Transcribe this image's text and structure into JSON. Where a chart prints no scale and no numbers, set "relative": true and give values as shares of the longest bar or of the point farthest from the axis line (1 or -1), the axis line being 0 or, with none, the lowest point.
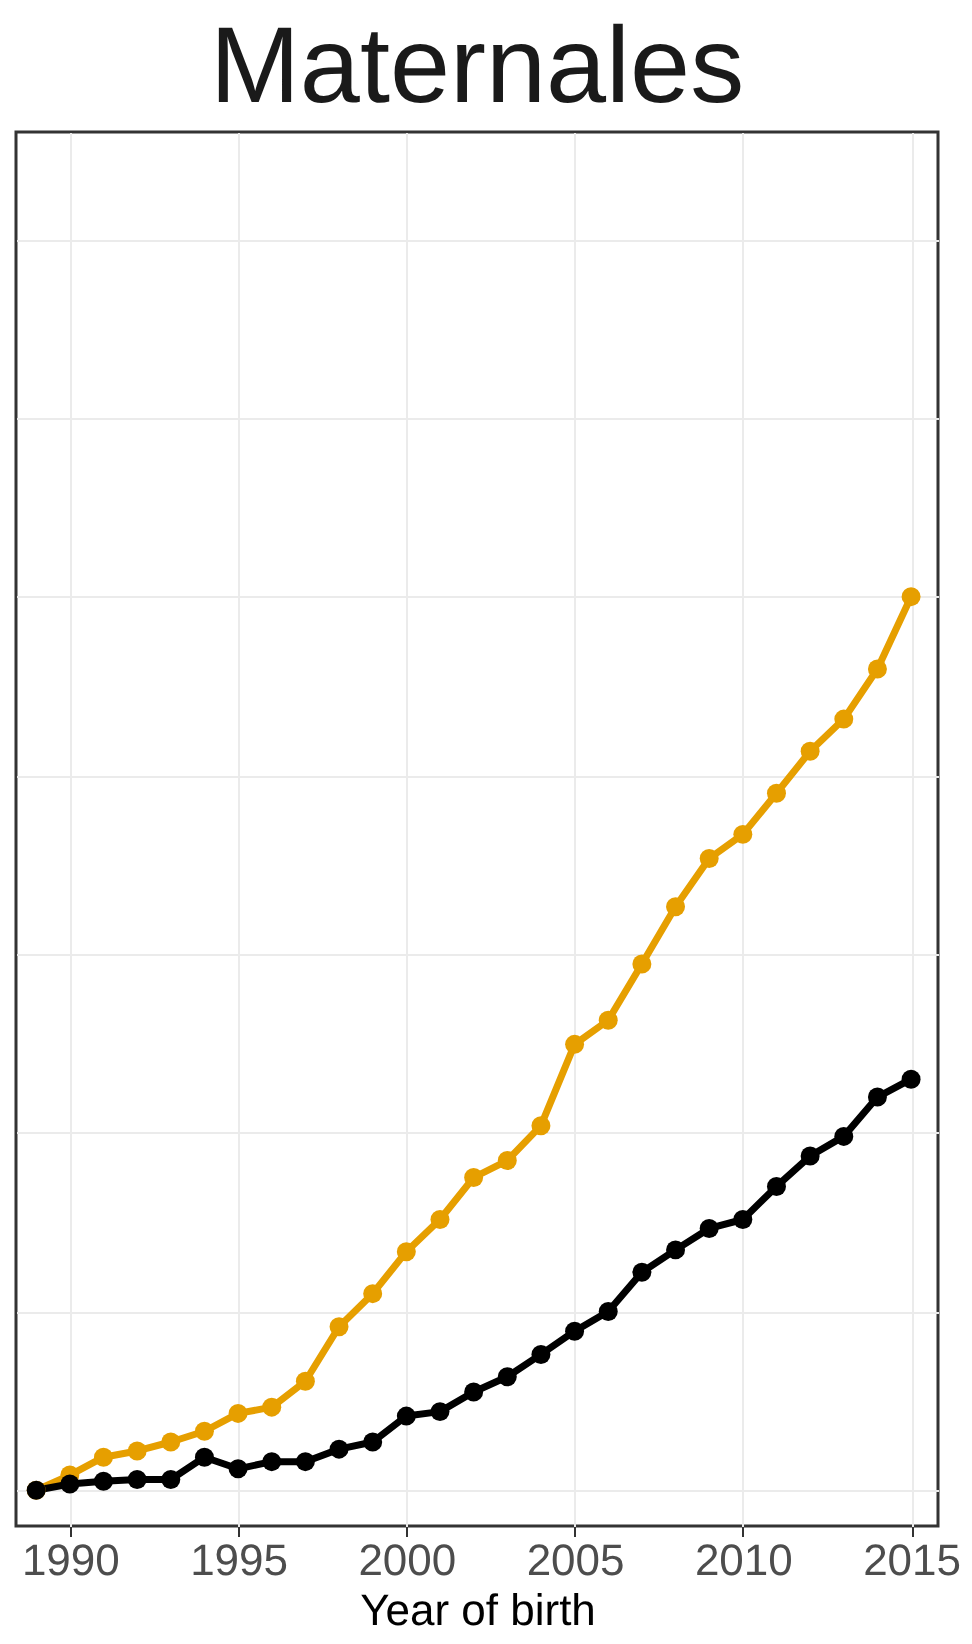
{
  "chart_data": {
    "type": "line",
    "title": "Maternales",
    "xlabel": "Year of birth",
    "relative": true,
    "grid": true,
    "marker": "circle",
    "line_style": "solid",
    "x": [
      1989,
      1990,
      1991,
      1992,
      1993,
      1994,
      1995,
      1996,
      1997,
      1998,
      1999,
      2000,
      2001,
      2002,
      2003,
      2004,
      2005,
      2006,
      2007,
      2008,
      2009,
      2010,
      2011,
      2012,
      2013,
      2014,
      2015
    ],
    "xlim": [
      1988.4,
      2015.8
    ],
    "xticks": [
      1990,
      1995,
      2000,
      2005,
      2010,
      2015
    ],
    "series": [
      {
        "color": "#e69f00",
        "values": [
          0,
          0.017,
          0.037,
          0.044,
          0.054,
          0.066,
          0.086,
          0.093,
          0.122,
          0.183,
          0.22,
          0.267,
          0.303,
          0.35,
          0.369,
          0.408,
          0.499,
          0.526,
          0.589,
          0.653,
          0.707,
          0.734,
          0.78,
          0.827,
          0.863,
          0.919,
          1
        ]
      },
      {
        "color": "#000000",
        "values": [
          0,
          0.007,
          0.01,
          0.012,
          0.012,
          0.037,
          0.024,
          0.032,
          0.032,
          0.046,
          0.054,
          0.083,
          0.088,
          0.11,
          0.127,
          0.152,
          0.178,
          0.2,
          0.244,
          0.269,
          0.293,
          0.303,
          0.34,
          0.374,
          0.396,
          0.44,
          0.46
        ]
      }
    ]
  }
}
